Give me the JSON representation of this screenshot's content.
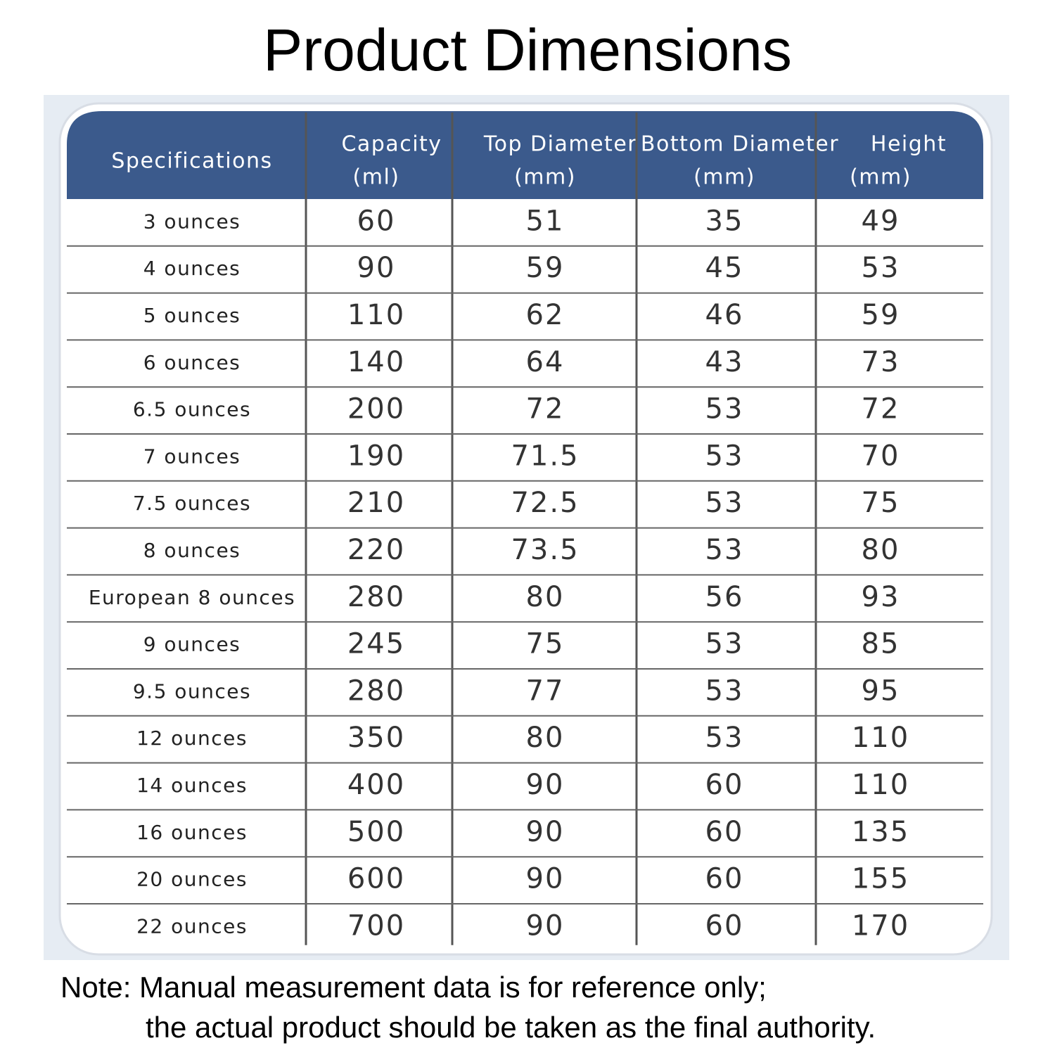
{
  "title": "Product Dimensions",
  "table": {
    "header": [
      {
        "name": "Specifications"
      },
      {
        "name": "Capacity",
        "unit": "(ml)"
      },
      {
        "name": "Top Diameter",
        "unit": "(mm)"
      },
      {
        "name": "Bottom Diameter",
        "unit": "(mm)"
      },
      {
        "name": "Height",
        "unit": "(mm)"
      }
    ],
    "rows": [
      [
        "3 ounces",
        "60",
        "51",
        "35",
        "49"
      ],
      [
        "4 ounces",
        "90",
        "59",
        "45",
        "53"
      ],
      [
        "5 ounces",
        "110",
        "62",
        "46",
        "59"
      ],
      [
        "6 ounces",
        "140",
        "64",
        "43",
        "73"
      ],
      [
        "6.5 ounces",
        "200",
        "72",
        "53",
        "72"
      ],
      [
        "7 ounces",
        "190",
        "71.5",
        "53",
        "70"
      ],
      [
        "7.5 ounces",
        "210",
        "72.5",
        "53",
        "75"
      ],
      [
        "8 ounces",
        "220",
        "73.5",
        "53",
        "80"
      ],
      [
        "European 8 ounces",
        "280",
        "80",
        "56",
        "93"
      ],
      [
        "9 ounces",
        "245",
        "75",
        "53",
        "85"
      ],
      [
        "9.5 ounces",
        "280",
        "77",
        "53",
        "95"
      ],
      [
        "12 ounces",
        "350",
        "80",
        "53",
        "110"
      ],
      [
        "14 ounces",
        "400",
        "90",
        "60",
        "110"
      ],
      [
        "16 ounces",
        "500",
        "90",
        "60",
        "135"
      ],
      [
        "20 ounces",
        "600",
        "90",
        "60",
        "155"
      ],
      [
        "22 ounces",
        "700",
        "90",
        "60",
        "170"
      ]
    ]
  },
  "note": [
    "Note: Manual measurement data is for reference only;",
    "the actual product should be taken as the final authority."
  ]
}
